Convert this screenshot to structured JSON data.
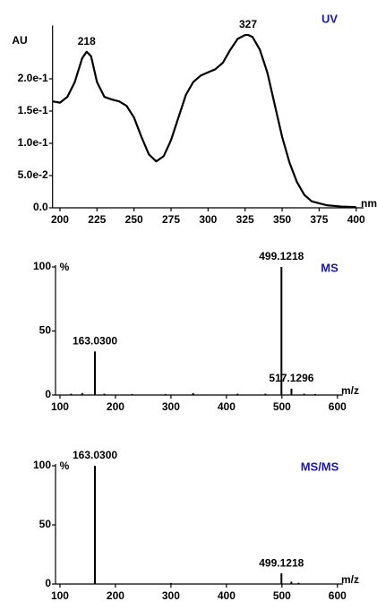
{
  "chart_data": [
    {
      "type": "line",
      "title": "UV",
      "ylabel": "AU",
      "xlabel": "nm",
      "color": "#000000",
      "title_color": "#1a1aa6",
      "x": [
        195,
        200,
        205,
        210,
        215,
        218,
        221,
        225,
        230,
        235,
        240,
        245,
        250,
        255,
        260,
        265,
        270,
        275,
        280,
        285,
        290,
        295,
        300,
        305,
        310,
        315,
        320,
        325,
        327,
        330,
        335,
        340,
        345,
        350,
        355,
        360,
        365,
        370,
        380,
        390,
        400
      ],
      "values": [
        0.165,
        0.163,
        0.172,
        0.195,
        0.232,
        0.242,
        0.235,
        0.195,
        0.172,
        0.168,
        0.165,
        0.158,
        0.14,
        0.11,
        0.083,
        0.072,
        0.08,
        0.105,
        0.14,
        0.175,
        0.195,
        0.205,
        0.21,
        0.215,
        0.225,
        0.245,
        0.262,
        0.268,
        0.268,
        0.265,
        0.245,
        0.21,
        0.16,
        0.11,
        0.07,
        0.04,
        0.02,
        0.01,
        0.004,
        0.002,
        0.001
      ],
      "xlim": [
        195,
        405
      ],
      "ylim": [
        0,
        0.28
      ],
      "xticks": [
        200,
        225,
        250,
        275,
        300,
        325,
        350,
        375,
        400
      ],
      "yticks": [
        {
          "value": 0,
          "label": "0.0"
        },
        {
          "value": 0.05,
          "label": "5.0e-2"
        },
        {
          "value": 0.1,
          "label": "1.0e-1"
        },
        {
          "value": 0.15,
          "label": "1.5e-1"
        },
        {
          "value": 0.2,
          "label": "2.0e-1"
        }
      ],
      "annotations": [
        {
          "text": "218",
          "x": 218,
          "y": 0.242
        },
        {
          "text": "327",
          "x": 327,
          "y": 0.268
        }
      ]
    },
    {
      "type": "stick",
      "title": "MS",
      "ylabel": "%",
      "xlabel": "m/z",
      "color": "#000000",
      "title_color": "#1a1aa6",
      "x": [
        120,
        140,
        163.03,
        180,
        230,
        290,
        340,
        420,
        470,
        499.1218,
        517.1296,
        540,
        560
      ],
      "values": [
        1,
        1.5,
        34,
        1,
        0.8,
        0.8,
        1.5,
        1,
        1,
        100,
        5,
        1,
        0.8
      ],
      "xlim": [
        92,
        610
      ],
      "ylim": [
        0,
        100
      ],
      "xticks": [
        100,
        200,
        300,
        400,
        500,
        600
      ],
      "yticks": [
        0,
        50,
        100
      ],
      "annotations": [
        {
          "text": "163.0300",
          "x": 163.03,
          "y": 34
        },
        {
          "text": "499.1218",
          "x": 499.1218,
          "y": 100
        },
        {
          "text": "517.1296",
          "x": 517.1296,
          "y": 5
        }
      ]
    },
    {
      "type": "stick",
      "title": "MS/MS",
      "ylabel": "%",
      "xlabel": "m/z",
      "color": "#000000",
      "title_color": "#1a1aa6",
      "x": [
        163.03,
        300,
        499.1218,
        517,
        530
      ],
      "values": [
        100,
        0.8,
        9,
        2,
        1
      ],
      "xlim": [
        92,
        610
      ],
      "ylim": [
        0,
        100
      ],
      "xticks": [
        100,
        200,
        300,
        400,
        500,
        600
      ],
      "yticks": [
        0,
        50,
        100
      ],
      "annotations": [
        {
          "text": "163.0300",
          "x": 163.03,
          "y": 100
        },
        {
          "text": "499.1218",
          "x": 499.1218,
          "y": 9
        }
      ]
    }
  ]
}
